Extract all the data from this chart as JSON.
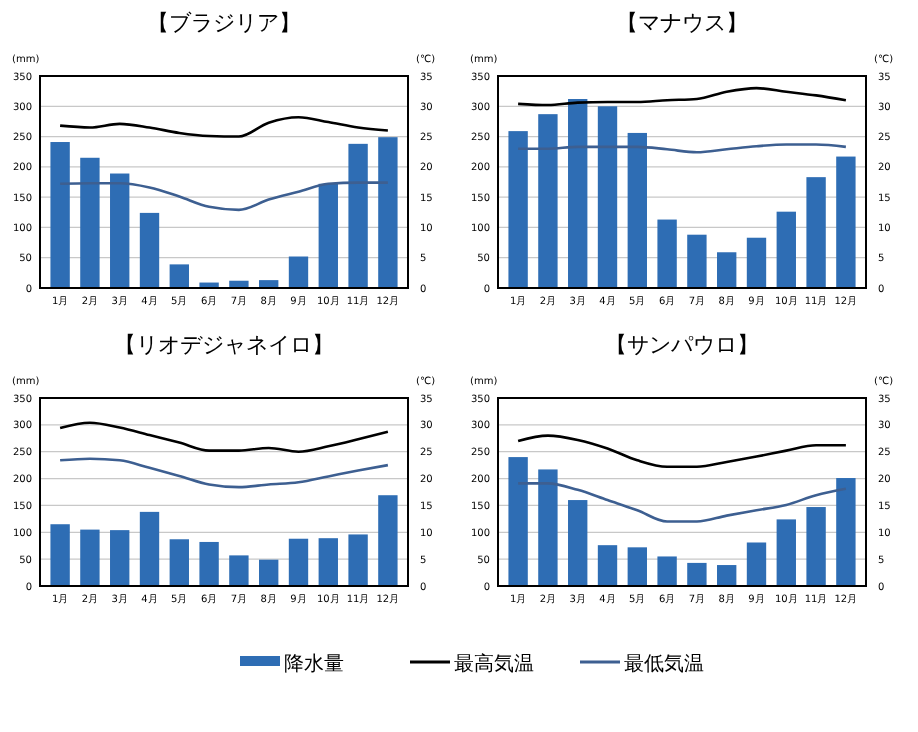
{
  "chart_data": [
    {
      "type": "bar",
      "title": "【ブラジリア】",
      "ylabel": "(mm)",
      "y2label": "(℃)",
      "categories": [
        "1月",
        "2月",
        "3月",
        "4月",
        "5月",
        "6月",
        "7月",
        "8月",
        "9月",
        "10月",
        "11月",
        "12月"
      ],
      "ylim": [
        0,
        350
      ],
      "yticks": [
        0,
        50,
        100,
        150,
        200,
        250,
        300,
        350
      ],
      "y2lim": [
        0,
        35
      ],
      "y2ticks": [
        0,
        5,
        10,
        15,
        20,
        25,
        30,
        35
      ],
      "grid": "y",
      "series": [
        {
          "color": "#2e6db4",
          "values": [
            241,
            215,
            189,
            124,
            39,
            9,
            12,
            13,
            52,
            172,
            238,
            249
          ]
        },
        {
          "type": "line",
          "axis": "y2",
          "color": "#000000",
          "values": [
            26.8,
            26.5,
            27.1,
            26.5,
            25.6,
            25.1,
            25.0,
            27.3,
            28.2,
            27.4,
            26.5,
            26.0
          ]
        },
        {
          "type": "line",
          "axis": "y2",
          "color": "#3d5f91",
          "values": [
            17.2,
            17.3,
            17.3,
            16.6,
            15.1,
            13.4,
            12.9,
            14.6,
            15.9,
            17.2,
            17.4,
            17.4
          ]
        }
      ]
    },
    {
      "type": "bar",
      "title": "【マナウス】",
      "ylabel": "(mm)",
      "y2label": "(℃)",
      "categories": [
        "1月",
        "2月",
        "3月",
        "4月",
        "5月",
        "6月",
        "7月",
        "8月",
        "9月",
        "10月",
        "11月",
        "12月"
      ],
      "ylim": [
        0,
        350
      ],
      "yticks": [
        0,
        50,
        100,
        150,
        200,
        250,
        300,
        350
      ],
      "y2lim": [
        0,
        35
      ],
      "y2ticks": [
        0,
        5,
        10,
        15,
        20,
        25,
        30,
        35
      ],
      "grid": "y",
      "series": [
        {
          "color": "#2e6db4",
          "values": [
            259,
            287,
            312,
            300,
            256,
            113,
            88,
            59,
            83,
            126,
            183,
            217
          ]
        },
        {
          "type": "line",
          "axis": "y2",
          "color": "#000000",
          "values": [
            30.4,
            30.2,
            30.6,
            30.7,
            30.7,
            31.0,
            31.2,
            32.4,
            33.0,
            32.4,
            31.8,
            31.0
          ]
        },
        {
          "type": "line",
          "axis": "y2",
          "color": "#3d5f91",
          "values": [
            23.0,
            23.0,
            23.3,
            23.3,
            23.3,
            22.9,
            22.4,
            22.9,
            23.4,
            23.7,
            23.7,
            23.3
          ]
        }
      ]
    },
    {
      "type": "bar",
      "title": "【リオデジャネイロ】",
      "ylabel": "(mm)",
      "y2label": "(℃)",
      "categories": [
        "1月",
        "2月",
        "3月",
        "4月",
        "5月",
        "6月",
        "7月",
        "8月",
        "9月",
        "10月",
        "11月",
        "12月"
      ],
      "ylim": [
        0,
        350
      ],
      "yticks": [
        0,
        50,
        100,
        150,
        200,
        250,
        300,
        350
      ],
      "y2lim": [
        0,
        35
      ],
      "y2ticks": [
        0,
        5,
        10,
        15,
        20,
        25,
        30,
        35
      ],
      "grid": "y",
      "series": [
        {
          "color": "#2e6db4",
          "values": [
            115,
            105,
            104,
            138,
            87,
            82,
            57,
            49,
            88,
            89,
            96,
            169
          ]
        },
        {
          "type": "line",
          "axis": "y2",
          "color": "#000000",
          "values": [
            29.4,
            30.4,
            29.5,
            28.1,
            26.7,
            25.2,
            25.2,
            25.7,
            25.0,
            26.0,
            27.3,
            28.7
          ]
        },
        {
          "type": "line",
          "axis": "y2",
          "color": "#3d5f91",
          "values": [
            23.4,
            23.7,
            23.4,
            22.0,
            20.5,
            18.9,
            18.4,
            18.9,
            19.3,
            20.4,
            21.5,
            22.5
          ]
        }
      ]
    },
    {
      "type": "bar",
      "title": "【サンパウロ】",
      "ylabel": "(mm)",
      "y2label": "(℃)",
      "categories": [
        "1月",
        "2月",
        "3月",
        "4月",
        "5月",
        "6月",
        "7月",
        "8月",
        "9月",
        "10月",
        "11月",
        "12月"
      ],
      "ylim": [
        0,
        350
      ],
      "yticks": [
        0,
        50,
        100,
        150,
        200,
        250,
        300,
        350
      ],
      "y2lim": [
        0,
        35
      ],
      "y2ticks": [
        0,
        5,
        10,
        15,
        20,
        25,
        30,
        35
      ],
      "grid": "y",
      "legend": "bottom",
      "series": [
        {
          "name": "降水量",
          "color": "#2e6db4",
          "values": [
            240,
            217,
            160,
            76,
            72,
            55,
            43,
            39,
            81,
            124,
            147,
            201
          ]
        },
        {
          "type": "line",
          "axis": "y2",
          "name": "最高気温",
          "color": "#000000",
          "values": [
            27.0,
            28.0,
            27.2,
            25.6,
            23.4,
            22.2,
            22.2,
            23.1,
            24.1,
            25.2,
            26.2,
            26.2
          ]
        },
        {
          "type": "line",
          "axis": "y2",
          "name": "最低気温",
          "color": "#3d5f91",
          "values": [
            19.1,
            19.1,
            17.9,
            16.0,
            14.1,
            12.0,
            12.0,
            13.1,
            14.1,
            15.1,
            16.9,
            18.1
          ]
        }
      ]
    }
  ]
}
